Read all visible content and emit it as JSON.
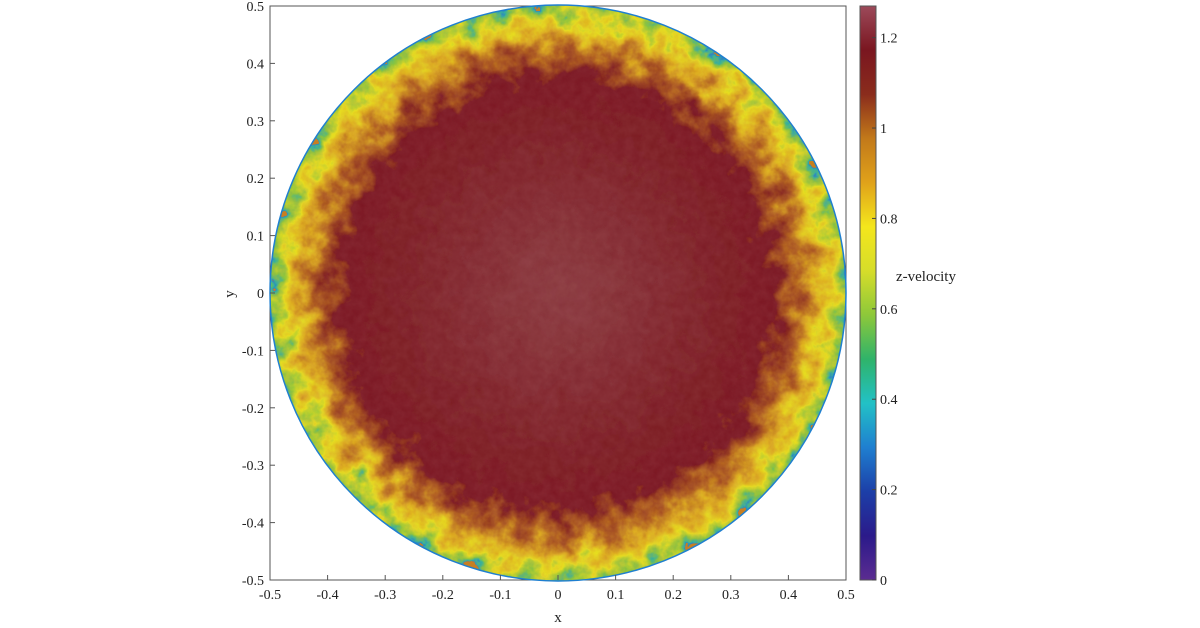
{
  "chart_data": {
    "type": "heatmap",
    "title": "",
    "xlabel": "x",
    "ylabel": "y",
    "xlim": [
      -0.5,
      0.5
    ],
    "ylim": [
      -0.5,
      0.5
    ],
    "x_ticks": [
      -0.5,
      -0.4,
      -0.3,
      -0.2,
      -0.1,
      0,
      0.1,
      0.2,
      0.3,
      0.4,
      0.5
    ],
    "x_tick_labels": [
      "-0.5",
      "-0.4",
      "-0.3",
      "-0.2",
      "-0.1",
      "0",
      "0.1",
      "0.2",
      "0.3",
      "0.4",
      "0.5"
    ],
    "y_ticks": [
      0.5,
      0.4,
      0.3,
      0.2,
      0.1,
      0,
      -0.1,
      -0.2,
      -0.3,
      -0.4,
      -0.5
    ],
    "y_tick_labels": [
      "0.5",
      "0.4",
      "0.3",
      "0.2",
      "0.1",
      "0",
      "-0.1",
      "-0.2",
      "-0.3",
      "-0.4",
      "-0.5"
    ],
    "domain_shape": "circle",
    "domain_radius": 0.5,
    "grid": false,
    "colorbar": {
      "label": "z-velocity",
      "range": [
        0,
        1.27
      ],
      "ticks": [
        0,
        0.2,
        0.4,
        0.6,
        0.8,
        1,
        1.2
      ],
      "tick_labels": [
        "0",
        "0.2",
        "0.4",
        "0.6",
        "0.8",
        "1",
        "1.2"
      ],
      "colormap": "parula-like",
      "colors": [
        "#5b2c91",
        "#2b1a8a",
        "#1c3fa8",
        "#1f7fd0",
        "#22c1c6",
        "#2fb36a",
        "#8dc83a",
        "#d6dd2a",
        "#f4e61c",
        "#e0a21a",
        "#c2791a",
        "#8a2c1c",
        "#7a1620",
        "#9c4a5a"
      ]
    },
    "field_description_regions": [
      {
        "region": "core",
        "approx_radius": [
          0,
          0.3
        ],
        "approx_value": 1.15
      },
      {
        "region": "transition",
        "approx_radius": [
          0.3,
          0.42
        ],
        "approx_value": 0.95
      },
      {
        "region": "near-wall",
        "approx_radius": [
          0.42,
          0.5
        ],
        "approx_value": 0.7
      }
    ]
  }
}
